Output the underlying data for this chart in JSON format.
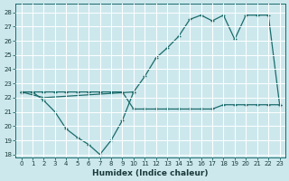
{
  "xlabel": "Humidex (Indice chaleur)",
  "bg_color": "#cde8ed",
  "grid_color": "#ffffff",
  "line_color": "#1a6b6b",
  "ylim": [
    17.8,
    28.6
  ],
  "xlim": [
    -0.5,
    23.5
  ],
  "yticks": [
    18,
    19,
    20,
    21,
    22,
    23,
    24,
    25,
    26,
    27,
    28
  ],
  "xticks": [
    0,
    1,
    2,
    3,
    4,
    5,
    6,
    7,
    8,
    9,
    10,
    11,
    12,
    13,
    14,
    15,
    16,
    17,
    18,
    19,
    20,
    21,
    22,
    23
  ],
  "line_dip_x": [
    0,
    1,
    2,
    3,
    4,
    5,
    6,
    7,
    8,
    9,
    10
  ],
  "line_dip_y": [
    22.4,
    22.4,
    21.8,
    21.0,
    19.8,
    19.2,
    18.7,
    18.0,
    19.0,
    20.4,
    22.4
  ],
  "line_flat_x": [
    0,
    1,
    2,
    3,
    4,
    5,
    6,
    7,
    8,
    9,
    10,
    11,
    12,
    13,
    14,
    15,
    16,
    17,
    18,
    19,
    20,
    21,
    22,
    23
  ],
  "line_flat_y": [
    22.4,
    22.4,
    22.4,
    22.4,
    22.4,
    22.4,
    22.4,
    22.4,
    22.4,
    22.4,
    21.2,
    21.2,
    21.2,
    21.2,
    21.2,
    21.2,
    21.2,
    21.2,
    21.5,
    21.5,
    21.5,
    21.5,
    21.5,
    21.5
  ],
  "line_rise_x": [
    0,
    2,
    10,
    11,
    12,
    13,
    14,
    15,
    16,
    17,
    18,
    19,
    20,
    21,
    22,
    23
  ],
  "line_rise_y": [
    22.4,
    22.0,
    22.4,
    23.5,
    24.8,
    25.5,
    26.3,
    27.5,
    27.8,
    27.4,
    27.8,
    26.1,
    27.8,
    27.8,
    27.8,
    21.5
  ]
}
